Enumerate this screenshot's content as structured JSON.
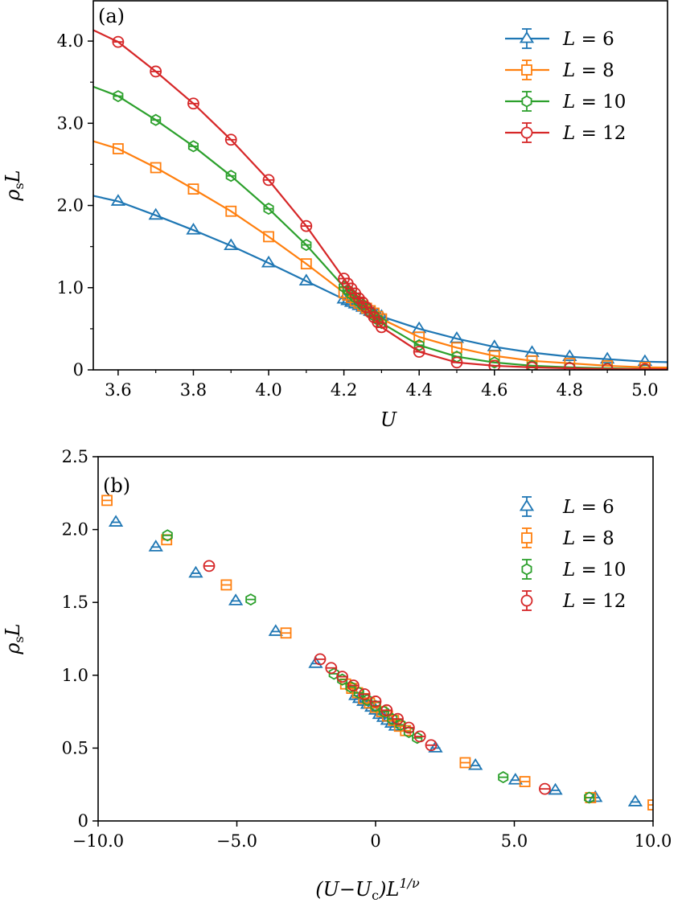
{
  "colors": {
    "L6": "#1f77b4",
    "L8": "#ff7f0e",
    "L10": "#2ca02c",
    "L12": "#d62728"
  },
  "chart_data": [
    {
      "type": "line",
      "panel_label": "(a)",
      "xlabel": "U",
      "ylabel": {
        "main": "ρ",
        "sub": "s",
        "tail": "L"
      },
      "xlim": [
        3.534,
        5.06
      ],
      "ylim": [
        0,
        4.49
      ],
      "xticks": [
        3.6,
        3.8,
        4.0,
        4.2,
        4.4,
        4.6,
        4.8,
        5.0
      ],
      "xtick_labels": [
        "3.6",
        "3.8",
        "4.0",
        "4.2",
        "4.4",
        "4.6",
        "4.8",
        "5.0"
      ],
      "yticks": [
        0,
        1,
        2,
        3,
        4
      ],
      "ytick_labels": [
        "0",
        "1.0",
        "2.0",
        "3.0",
        "4.0"
      ],
      "legend_position": "top-right",
      "series": [
        {
          "name": "L = 6",
          "marker": "triangle",
          "color_key": "L6",
          "x": [
            3.6,
            3.7,
            3.8,
            3.9,
            4.0,
            4.1,
            4.2,
            4.21,
            4.22,
            4.23,
            4.24,
            4.25,
            4.26,
            4.27,
            4.28,
            4.29,
            4.3,
            4.4,
            4.5,
            4.6,
            4.7,
            4.8,
            4.9,
            5.0
          ],
          "y": [
            2.05,
            1.88,
            1.7,
            1.51,
            1.3,
            1.08,
            0.86,
            0.84,
            0.82,
            0.8,
            0.78,
            0.76,
            0.73,
            0.71,
            0.69,
            0.67,
            0.65,
            0.5,
            0.38,
            0.28,
            0.21,
            0.16,
            0.13,
            0.1
          ]
        },
        {
          "name": "L = 8",
          "marker": "square",
          "color_key": "L8",
          "x": [
            3.6,
            3.7,
            3.8,
            3.9,
            4.0,
            4.1,
            4.2,
            4.21,
            4.22,
            4.23,
            4.24,
            4.25,
            4.26,
            4.27,
            4.28,
            4.29,
            4.3,
            4.4,
            4.5,
            4.6,
            4.7,
            4.8,
            4.9,
            5.0
          ],
          "y": [
            2.69,
            2.46,
            2.2,
            1.93,
            1.62,
            1.29,
            0.94,
            0.91,
            0.88,
            0.84,
            0.81,
            0.78,
            0.75,
            0.72,
            0.69,
            0.65,
            0.62,
            0.4,
            0.27,
            0.17,
            0.11,
            0.08,
            0.05,
            0.03
          ]
        },
        {
          "name": "L = 10",
          "marker": "hexagon",
          "color_key": "L10",
          "x": [
            3.6,
            3.7,
            3.8,
            3.9,
            4.0,
            4.1,
            4.2,
            4.21,
            4.22,
            4.23,
            4.24,
            4.25,
            4.26,
            4.27,
            4.28,
            4.29,
            4.3,
            4.4,
            4.5,
            4.6,
            4.7,
            4.8,
            4.9,
            5.0
          ],
          "y": [
            3.33,
            3.04,
            2.72,
            2.36,
            1.96,
            1.52,
            1.01,
            0.97,
            0.92,
            0.88,
            0.83,
            0.79,
            0.75,
            0.7,
            0.66,
            0.61,
            0.57,
            0.3,
            0.16,
            0.09,
            0.05,
            0.03,
            0.02,
            0.01
          ]
        },
        {
          "name": "L = 12",
          "marker": "circle",
          "color_key": "L12",
          "x": [
            3.6,
            3.7,
            3.8,
            3.9,
            4.0,
            4.1,
            4.2,
            4.21,
            4.22,
            4.23,
            4.24,
            4.25,
            4.26,
            4.27,
            4.28,
            4.29,
            4.3,
            4.4,
            4.5,
            4.6,
            4.7,
            4.8,
            4.9,
            5.0
          ],
          "y": [
            3.99,
            3.63,
            3.24,
            2.8,
            2.31,
            1.75,
            1.11,
            1.05,
            0.99,
            0.93,
            0.87,
            0.82,
            0.76,
            0.7,
            0.64,
            0.58,
            0.52,
            0.22,
            0.09,
            0.05,
            0.03,
            0.02,
            0.01,
            0.01
          ]
        }
      ]
    },
    {
      "type": "scatter",
      "panel_label": "(b)",
      "xlabel": {
        "pre": "(U−U",
        "sub": "c",
        "mid": ")L",
        "sup": "1/ν"
      },
      "ylabel": {
        "main": "ρ",
        "sub": "s",
        "tail": "L"
      },
      "xlim": [
        -10,
        10
      ],
      "ylim": [
        0,
        2.5
      ],
      "xticks": [
        -10,
        -5,
        0,
        5,
        10
      ],
      "xtick_labels": [
        "−10.0",
        "−5.0",
        "0",
        "5.0",
        "10.0"
      ],
      "yticks": [
        0,
        0.5,
        1.0,
        1.5,
        2.0,
        2.5
      ],
      "ytick_labels": [
        "0",
        "0.5",
        "1.0",
        "1.5",
        "2.0",
        "2.5"
      ],
      "legend_position": "top-right",
      "series": [
        {
          "name": "L = 6",
          "marker": "triangle",
          "color_key": "L6",
          "x": [
            -9.36,
            -7.92,
            -6.48,
            -5.04,
            -3.6,
            -2.16,
            -0.72,
            -0.58,
            -0.43,
            -0.29,
            -0.14,
            0,
            0.14,
            0.29,
            0.43,
            0.58,
            0.72,
            2.16,
            3.6,
            5.04,
            6.48,
            7.92,
            9.36
          ],
          "y": [
            2.05,
            1.88,
            1.7,
            1.51,
            1.3,
            1.08,
            0.86,
            0.84,
            0.82,
            0.8,
            0.78,
            0.76,
            0.73,
            0.71,
            0.69,
            0.67,
            0.65,
            0.5,
            0.38,
            0.28,
            0.21,
            0.16,
            0.13
          ]
        },
        {
          "name": "L = 8",
          "marker": "square",
          "color_key": "L8",
          "x": [
            -9.68,
            -7.53,
            -5.38,
            -3.23,
            -1.08,
            -0.86,
            -0.65,
            -0.43,
            -0.22,
            0,
            0.22,
            0.43,
            0.65,
            0.86,
            1.08,
            3.23,
            5.38,
            7.75,
            10.0
          ],
          "y": [
            2.2,
            1.93,
            1.62,
            1.29,
            0.94,
            0.91,
            0.88,
            0.84,
            0.81,
            0.78,
            0.75,
            0.72,
            0.69,
            0.65,
            0.62,
            0.4,
            0.27,
            0.16,
            0.11
          ]
        },
        {
          "name": "L = 10",
          "marker": "hexagon",
          "color_key": "L10",
          "x": [
            -7.5,
            -4.5,
            -1.5,
            -1.2,
            -0.9,
            -0.6,
            -0.3,
            0,
            0.3,
            0.6,
            0.9,
            1.2,
            1.5,
            4.6,
            7.7
          ],
          "y": [
            1.96,
            1.52,
            1.01,
            0.97,
            0.92,
            0.88,
            0.83,
            0.79,
            0.75,
            0.7,
            0.66,
            0.61,
            0.57,
            0.3,
            0.16
          ]
        },
        {
          "name": "L = 12",
          "marker": "circle",
          "color_key": "L12",
          "x": [
            -6.0,
            -2.0,
            -1.6,
            -1.2,
            -0.8,
            -0.4,
            0,
            0.4,
            0.8,
            1.2,
            1.6,
            2.0,
            6.1
          ],
          "y": [
            1.75,
            1.11,
            1.05,
            0.99,
            0.93,
            0.87,
            0.82,
            0.76,
            0.7,
            0.64,
            0.58,
            0.52,
            0.22
          ]
        }
      ]
    }
  ]
}
